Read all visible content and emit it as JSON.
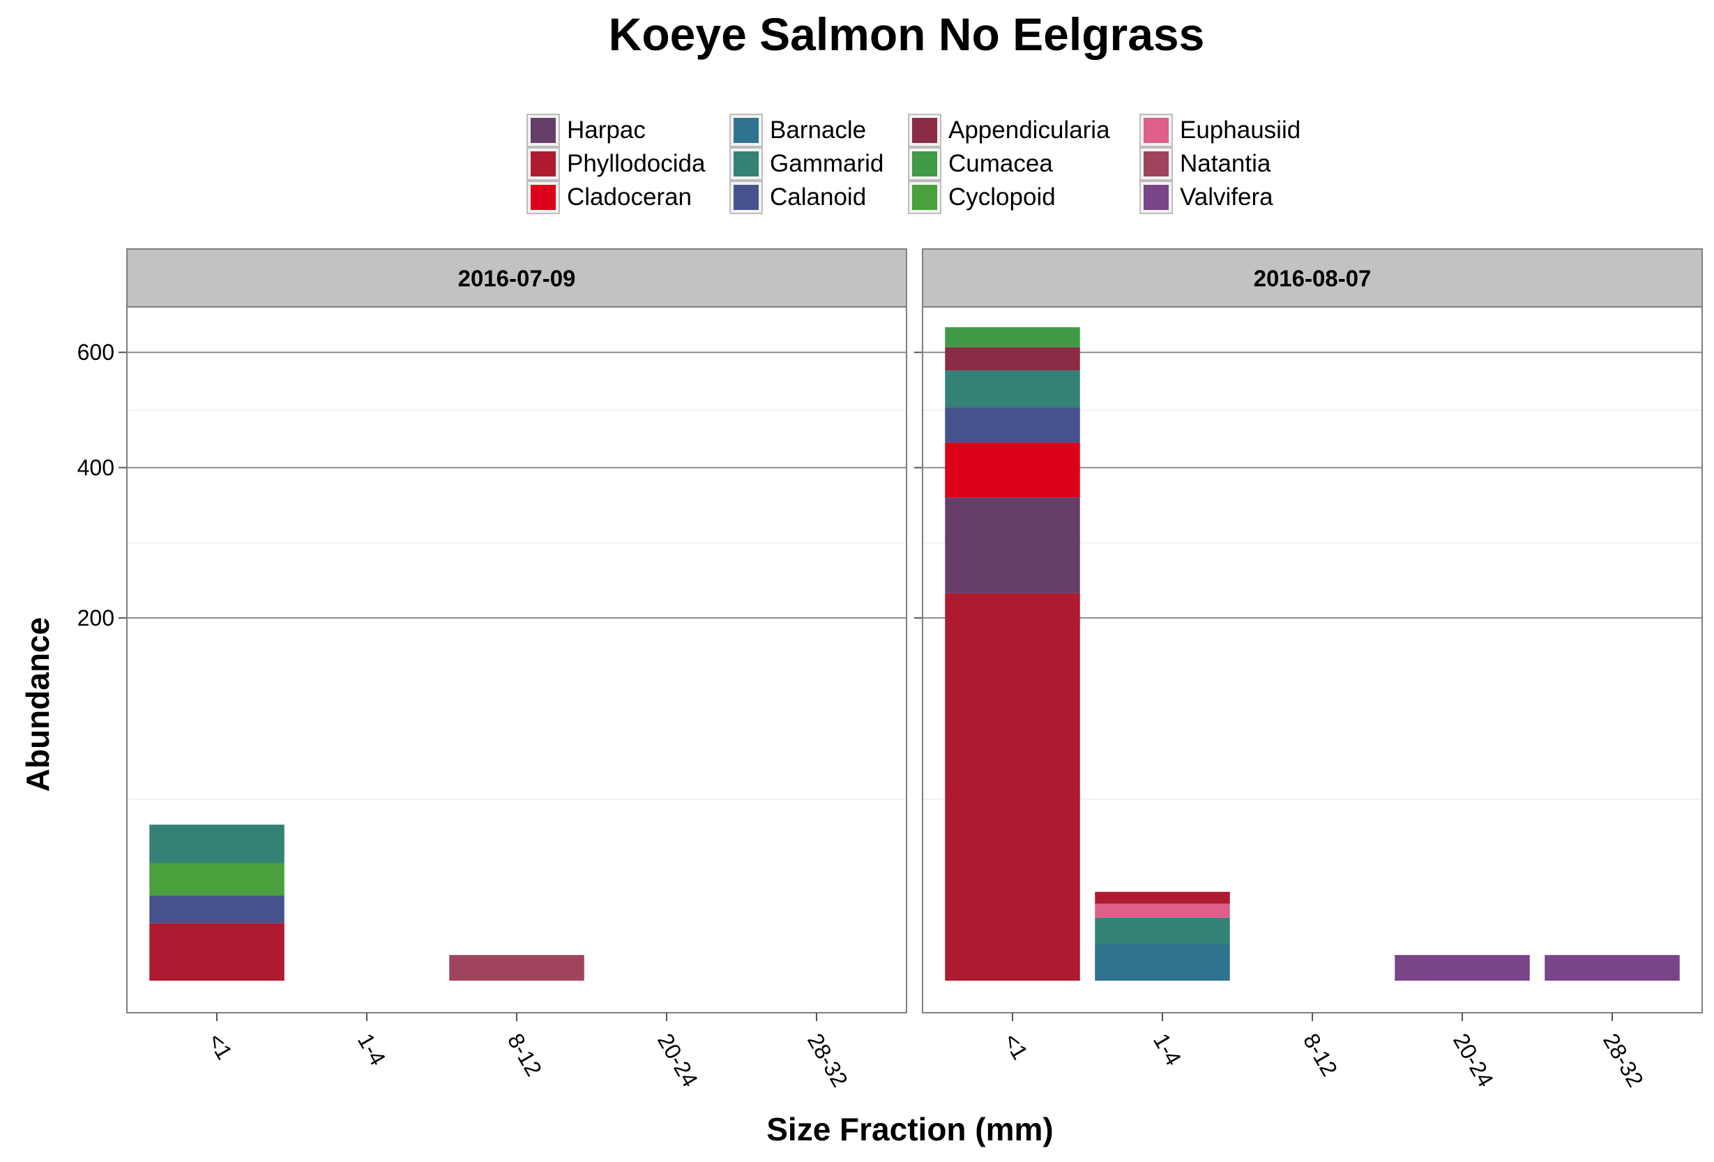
{
  "chart_data": {
    "type": "bar",
    "title": "Koeye Salmon No Eelgrass",
    "xlabel": "Size Fraction (mm)",
    "ylabel": "Abundance",
    "y_scale": "sqrt",
    "ylim": [
      0,
      690
    ],
    "y_ticks": [
      200,
      400,
      600
    ],
    "grid": true,
    "legend_position": "top",
    "categories": [
      "<1",
      "1-4",
      "8-12",
      "20-24",
      "28-32"
    ],
    "species": [
      {
        "name": "Harpac",
        "color": "#663F68"
      },
      {
        "name": "Phyllodocida",
        "color": "#AE1A2F"
      },
      {
        "name": "Cladoceran",
        "color": "#DC0019"
      },
      {
        "name": "Barnacle",
        "color": "#2F738F"
      },
      {
        "name": "Gammarid",
        "color": "#338275"
      },
      {
        "name": "Calanoid",
        "color": "#46528D"
      },
      {
        "name": "Appendicularia",
        "color": "#8B2C46"
      },
      {
        "name": "Cumacea",
        "color": "#3F9B45"
      },
      {
        "name": "Cyclopoid",
        "color": "#49A03C"
      },
      {
        "name": "Euphausiid",
        "color": "#DD5F8A"
      },
      {
        "name": "Natantia",
        "color": "#A0445D"
      },
      {
        "name": "Valvifera",
        "color": "#7A4488"
      }
    ],
    "panels": [
      {
        "label": "2016-07-09",
        "stacks": [
          {
            "category": "<1",
            "segments": [
              {
                "species": "Phyllodocida",
                "value": 5
              },
              {
                "species": "Calanoid",
                "value": 6
              },
              {
                "species": "Cyclopoid",
                "value": 10
              },
              {
                "species": "Gammarid",
                "value": 16
              }
            ]
          },
          {
            "category": "8-12",
            "segments": [
              {
                "species": "Natantia",
                "value": 1
              }
            ]
          }
        ]
      },
      {
        "label": "2016-08-07",
        "stacks": [
          {
            "category": "<1",
            "segments": [
              {
                "species": "Phyllodocida",
                "value": 228
              },
              {
                "species": "Harpac",
                "value": 127
              },
              {
                "species": "Cladoceran",
                "value": 85
              },
              {
                "species": "Calanoid",
                "value": 59
              },
              {
                "species": "Gammarid",
                "value": 67
              },
              {
                "species": "Appendicularia",
                "value": 44
              },
              {
                "species": "Cumacea",
                "value": 39
              }
            ]
          },
          {
            "category": "1-4",
            "segments": [
              {
                "species": "Barnacle",
                "value": 2
              },
              {
                "species": "Gammarid",
                "value": 4
              },
              {
                "species": "Euphausiid",
                "value": 3
              },
              {
                "species": "Phyllodocida",
                "value": 3
              }
            ]
          },
          {
            "category": "20-24",
            "segments": [
              {
                "species": "Valvifera",
                "value": 1
              }
            ]
          },
          {
            "category": "28-32",
            "segments": [
              {
                "species": "Valvifera",
                "value": 1
              }
            ]
          }
        ]
      }
    ]
  }
}
